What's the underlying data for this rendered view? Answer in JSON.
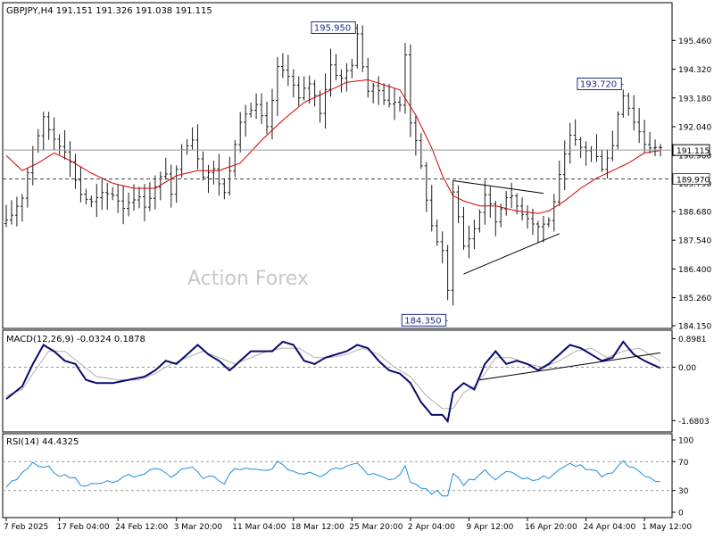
{
  "chart_data": [
    {
      "type": "line",
      "panel": "price",
      "symbol": "GBPJPY,H4",
      "ohlc_header": "191.151 191.326 191.038 191.115",
      "watermark": "Action Forex",
      "ylim": [
        184.15,
        196.78
      ],
      "yticks": [
        "195.460",
        "194.320",
        "193.180",
        "192.040",
        "190.900",
        "189.790",
        "188.680",
        "187.540",
        "186.400",
        "185.260",
        "184.150"
      ],
      "ytick_values": [
        195.46,
        194.32,
        193.18,
        192.04,
        190.9,
        189.79,
        188.68,
        187.54,
        186.4,
        185.26,
        184.15
      ],
      "current_price": "191.115",
      "current_price_value": 191.115,
      "support_level": "189.970",
      "support_level_value": 189.97,
      "annotations": [
        {
          "text": "195.950",
          "i": 66,
          "y": 195.95
        },
        {
          "text": "193.720",
          "i": 116,
          "y": 193.72
        },
        {
          "text": "184.350",
          "i": 83,
          "y": 184.35
        }
      ],
      "n_bars": 124,
      "x_tick_labels": [
        {
          "i": 0,
          "label": "7 Feb 2025"
        },
        {
          "i": 10,
          "label": "17 Feb 04:00"
        },
        {
          "i": 21,
          "label": "24 Feb 12:00"
        },
        {
          "i": 32,
          "label": "3 Mar 20:00"
        },
        {
          "i": 43,
          "label": "11 Mar 04:00"
        },
        {
          "i": 54,
          "label": "18 Mar 12:00"
        },
        {
          "i": 65,
          "label": "25 Mar 20:00"
        },
        {
          "i": 76,
          "label": "2 Apr 04:00"
        },
        {
          "i": 87,
          "label": "9 Apr 12:00"
        },
        {
          "i": 98,
          "label": "16 Apr 20:00"
        },
        {
          "i": 109,
          "label": "24 Apr 04:00"
        },
        {
          "i": 120,
          "label": "1 May 12:00"
        }
      ],
      "price_anchors": [
        [
          0,
          188.2
        ],
        [
          3,
          189.3
        ],
        [
          5,
          191.2
        ],
        [
          7,
          192.3
        ],
        [
          9,
          191.6
        ],
        [
          11,
          191.2
        ],
        [
          14,
          189.4
        ],
        [
          16,
          189.0
        ],
        [
          18,
          189.3
        ],
        [
          20,
          189.4
        ],
        [
          22,
          188.9
        ],
        [
          24,
          189.3
        ],
        [
          26,
          189.0
        ],
        [
          28,
          189.6
        ],
        [
          30,
          190.3
        ],
        [
          31,
          189.2
        ],
        [
          33,
          191.3
        ],
        [
          35,
          191.6
        ],
        [
          37,
          190.2
        ],
        [
          39,
          190.3
        ],
        [
          41,
          189.4
        ],
        [
          43,
          191.5
        ],
        [
          45,
          192.6
        ],
        [
          47,
          192.8
        ],
        [
          49,
          191.9
        ],
        [
          51,
          194.3
        ],
        [
          53,
          194.2
        ],
        [
          55,
          193.1
        ],
        [
          57,
          193.8
        ],
        [
          59,
          192.7
        ],
        [
          61,
          194.5
        ],
        [
          63,
          193.9
        ],
        [
          65,
          194.6
        ],
        [
          66,
          195.6
        ],
        [
          68,
          193.5
        ],
        [
          70,
          193.5
        ],
        [
          72,
          193.0
        ],
        [
          74,
          192.9
        ],
        [
          75,
          195.0
        ],
        [
          76,
          192.3
        ],
        [
          78,
          190.4
        ],
        [
          80,
          188.1
        ],
        [
          82,
          187.0
        ],
        [
          83,
          185.5
        ],
        [
          84,
          189.6
        ],
        [
          86,
          187.3
        ],
        [
          88,
          188.0
        ],
        [
          90,
          189.4
        ],
        [
          92,
          188.3
        ],
        [
          94,
          189.4
        ],
        [
          96,
          188.9
        ],
        [
          98,
          188.5
        ],
        [
          100,
          188.1
        ],
        [
          102,
          188.3
        ],
        [
          104,
          190.0
        ],
        [
          106,
          191.6
        ],
        [
          108,
          191.2
        ],
        [
          110,
          191.1
        ],
        [
          112,
          190.5
        ],
        [
          114,
          191.3
        ],
        [
          115,
          192.6
        ],
        [
          116,
          193.4
        ],
        [
          118,
          192.3
        ],
        [
          120,
          191.4
        ],
        [
          123,
          191.1
        ]
      ],
      "ma_anchors": [
        [
          0,
          190.9
        ],
        [
          3,
          190.3
        ],
        [
          6,
          190.6
        ],
        [
          9,
          191.0
        ],
        [
          12,
          190.7
        ],
        [
          16,
          190.2
        ],
        [
          20,
          189.8
        ],
        [
          24,
          189.6
        ],
        [
          28,
          189.6
        ],
        [
          32,
          190.1
        ],
        [
          36,
          190.3
        ],
        [
          40,
          190.3
        ],
        [
          44,
          190.6
        ],
        [
          48,
          191.5
        ],
        [
          52,
          192.3
        ],
        [
          56,
          193.0
        ],
        [
          60,
          193.4
        ],
        [
          64,
          193.8
        ],
        [
          68,
          193.9
        ],
        [
          71,
          193.7
        ],
        [
          74,
          193.5
        ],
        [
          77,
          192.5
        ],
        [
          80,
          191.2
        ],
        [
          82,
          190.1
        ],
        [
          84,
          189.3
        ],
        [
          86,
          189.1
        ],
        [
          89,
          188.9
        ],
        [
          92,
          188.9
        ],
        [
          96,
          188.7
        ],
        [
          100,
          188.6
        ],
        [
          102,
          188.7
        ],
        [
          105,
          189.1
        ],
        [
          108,
          189.6
        ],
        [
          111,
          190.0
        ],
        [
          114,
          190.3
        ],
        [
          117,
          190.6
        ],
        [
          120,
          191.0
        ],
        [
          123,
          191.1
        ]
      ],
      "trendlines": [
        {
          "from": [
            84,
            189.9
          ],
          "to": [
            101,
            189.4
          ]
        },
        {
          "from": [
            86,
            186.2
          ],
          "to": [
            104,
            187.8
          ]
        }
      ]
    },
    {
      "type": "line",
      "panel": "macd",
      "title": "MACD(12,26,9) -0.0324 0.1878",
      "ylim": [
        -1.95,
        1.05
      ],
      "yticks": [
        "0.8981",
        "0.00",
        "-1.6803"
      ],
      "ytick_values": [
        0.8981,
        0.0,
        -1.6803
      ],
      "macd_anchors": [
        [
          0,
          -1.0
        ],
        [
          3,
          -0.6
        ],
        [
          5,
          0.1
        ],
        [
          7,
          0.7
        ],
        [
          9,
          0.5
        ],
        [
          11,
          0.2
        ],
        [
          13,
          0.1
        ],
        [
          15,
          -0.4
        ],
        [
          17,
          -0.5
        ],
        [
          20,
          -0.5
        ],
        [
          23,
          -0.4
        ],
        [
          26,
          -0.3
        ],
        [
          28,
          -0.1
        ],
        [
          30,
          0.2
        ],
        [
          32,
          0.1
        ],
        [
          34,
          0.4
        ],
        [
          36,
          0.7
        ],
        [
          38,
          0.4
        ],
        [
          40,
          0.2
        ],
        [
          42,
          -0.1
        ],
        [
          44,
          0.2
        ],
        [
          46,
          0.5
        ],
        [
          48,
          0.5
        ],
        [
          50,
          0.5
        ],
        [
          52,
          0.8
        ],
        [
          54,
          0.7
        ],
        [
          56,
          0.2
        ],
        [
          58,
          0.1
        ],
        [
          60,
          0.3
        ],
        [
          62,
          0.4
        ],
        [
          64,
          0.5
        ],
        [
          66,
          0.7
        ],
        [
          68,
          0.6
        ],
        [
          70,
          0.2
        ],
        [
          72,
          -0.1
        ],
        [
          74,
          -0.2
        ],
        [
          76,
          -0.5
        ],
        [
          78,
          -1.1
        ],
        [
          80,
          -1.5
        ],
        [
          82,
          -1.5
        ],
        [
          83,
          -1.7
        ],
        [
          84,
          -0.8
        ],
        [
          86,
          -0.5
        ],
        [
          88,
          -0.7
        ],
        [
          90,
          0.1
        ],
        [
          92,
          0.5
        ],
        [
          94,
          0.1
        ],
        [
          96,
          0.2
        ],
        [
          98,
          0.1
        ],
        [
          100,
          -0.1
        ],
        [
          102,
          0.1
        ],
        [
          104,
          0.4
        ],
        [
          106,
          0.7
        ],
        [
          108,
          0.6
        ],
        [
          110,
          0.4
        ],
        [
          112,
          0.2
        ],
        [
          114,
          0.3
        ],
        [
          116,
          0.8
        ],
        [
          118,
          0.4
        ],
        [
          120,
          0.2
        ],
        [
          123,
          -0.03
        ]
      ],
      "signal_anchors": [
        [
          0,
          -0.9
        ],
        [
          3,
          -0.7
        ],
        [
          5,
          -0.2
        ],
        [
          8,
          0.5
        ],
        [
          11,
          0.5
        ],
        [
          14,
          0.1
        ],
        [
          17,
          -0.3
        ],
        [
          21,
          -0.4
        ],
        [
          25,
          -0.4
        ],
        [
          28,
          -0.2
        ],
        [
          31,
          0.1
        ],
        [
          34,
          0.3
        ],
        [
          37,
          0.5
        ],
        [
          40,
          0.3
        ],
        [
          43,
          0.1
        ],
        [
          46,
          0.3
        ],
        [
          49,
          0.5
        ],
        [
          52,
          0.6
        ],
        [
          55,
          0.6
        ],
        [
          58,
          0.3
        ],
        [
          61,
          0.3
        ],
        [
          64,
          0.4
        ],
        [
          67,
          0.6
        ],
        [
          70,
          0.4
        ],
        [
          73,
          0.0
        ],
        [
          76,
          -0.3
        ],
        [
          79,
          -0.9
        ],
        [
          82,
          -1.3
        ],
        [
          84,
          -1.3
        ],
        [
          86,
          -0.8
        ],
        [
          88,
          -0.6
        ],
        [
          90,
          -0.2
        ],
        [
          92,
          0.3
        ],
        [
          95,
          0.3
        ],
        [
          98,
          0.1
        ],
        [
          101,
          0.0
        ],
        [
          104,
          0.2
        ],
        [
          107,
          0.5
        ],
        [
          110,
          0.6
        ],
        [
          113,
          0.3
        ],
        [
          116,
          0.5
        ],
        [
          119,
          0.6
        ],
        [
          123,
          0.19
        ]
      ],
      "trendlines": [
        {
          "from": [
            89,
            -0.4
          ],
          "to": [
            123,
            0.45
          ]
        }
      ]
    },
    {
      "type": "line",
      "panel": "rsi",
      "title": "RSI(14) 44.4325",
      "ylim": [
        0,
        100
      ],
      "yticks": [
        "100",
        "70",
        "30",
        "0"
      ],
      "ytick_values": [
        100,
        70,
        30,
        0
      ],
      "levels": [
        70,
        30
      ],
      "rsi_anchors": [
        [
          0,
          35
        ],
        [
          2,
          45
        ],
        [
          4,
          60
        ],
        [
          5,
          70
        ],
        [
          7,
          65
        ],
        [
          9,
          55
        ],
        [
          11,
          50
        ],
        [
          13,
          45
        ],
        [
          15,
          35
        ],
        [
          17,
          40
        ],
        [
          19,
          45
        ],
        [
          21,
          42
        ],
        [
          23,
          50
        ],
        [
          25,
          48
        ],
        [
          27,
          55
        ],
        [
          29,
          62
        ],
        [
          31,
          45
        ],
        [
          33,
          58
        ],
        [
          35,
          60
        ],
        [
          37,
          45
        ],
        [
          39,
          50
        ],
        [
          41,
          42
        ],
        [
          43,
          60
        ],
        [
          45,
          62
        ],
        [
          47,
          60
        ],
        [
          49,
          55
        ],
        [
          51,
          68
        ],
        [
          53,
          62
        ],
        [
          55,
          50
        ],
        [
          57,
          58
        ],
        [
          59,
          50
        ],
        [
          61,
          62
        ],
        [
          63,
          58
        ],
        [
          65,
          65
        ],
        [
          66,
          68
        ],
        [
          68,
          50
        ],
        [
          70,
          52
        ],
        [
          72,
          48
        ],
        [
          74,
          50
        ],
        [
          75,
          62
        ],
        [
          76,
          42
        ],
        [
          78,
          35
        ],
        [
          80,
          28
        ],
        [
          82,
          25
        ],
        [
          83,
          20
        ],
        [
          84,
          55
        ],
        [
          86,
          40
        ],
        [
          88,
          48
        ],
        [
          90,
          58
        ],
        [
          92,
          48
        ],
        [
          94,
          57
        ],
        [
          96,
          52
        ],
        [
          98,
          48
        ],
        [
          100,
          45
        ],
        [
          102,
          50
        ],
        [
          104,
          60
        ],
        [
          106,
          66
        ],
        [
          108,
          62
        ],
        [
          110,
          60
        ],
        [
          112,
          50
        ],
        [
          114,
          55
        ],
        [
          115,
          65
        ],
        [
          116,
          70
        ],
        [
          118,
          60
        ],
        [
          120,
          48
        ],
        [
          122,
          42
        ],
        [
          123,
          44
        ]
      ]
    }
  ]
}
